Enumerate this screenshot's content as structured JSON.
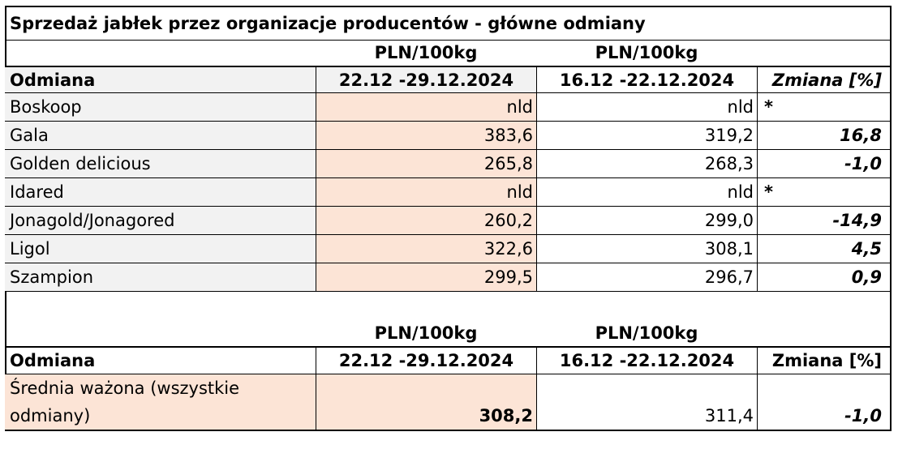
{
  "title": "Sprzedaż jabłek przez organizacje producentów  - główne odmiany",
  "units": {
    "col1": "PLN/100kg",
    "col2": "PLN/100kg"
  },
  "header": {
    "variety": "Odmiana",
    "period1": "22.12 -29.12.2024",
    "period2": "16.12 -22.12.2024",
    "change": "Zmiana  [%]"
  },
  "rows": [
    {
      "name": "Boskoop",
      "p1": "nld",
      "p2": "nld",
      "change": "*"
    },
    {
      "name": "Gala",
      "p1": "383,6",
      "p2": "319,2",
      "change": "16,8"
    },
    {
      "name": "Golden delicious",
      "p1": "265,8",
      "p2": "268,3",
      "change": "-1,0"
    },
    {
      "name": "Idared",
      "p1": "nld",
      "p2": "nld",
      "change": "*"
    },
    {
      "name": "Jonagold/Jonagored",
      "p1": "260,2",
      "p2": "299,0",
      "change": "-14,9"
    },
    {
      "name": "Ligol",
      "p1": "322,6",
      "p2": "308,1",
      "change": "4,5"
    },
    {
      "name": "Szampion",
      "p1": "299,5",
      "p2": "296,7",
      "change": "0,9"
    }
  ],
  "units2": {
    "col1": "PLN/100kg",
    "col2": "PLN/100kg"
  },
  "header2": {
    "variety": "Odmiana",
    "period1": "22.12 -29.12.2024",
    "period2": "16.12 -22.12.2024",
    "change": "Zmiana  [%]"
  },
  "weighted": {
    "name_line1": "Średnia ważona (wszystkie",
    "name_line2": "odmiany)",
    "p1": "308,2",
    "p2": "311,4",
    "change": "-1,0"
  }
}
